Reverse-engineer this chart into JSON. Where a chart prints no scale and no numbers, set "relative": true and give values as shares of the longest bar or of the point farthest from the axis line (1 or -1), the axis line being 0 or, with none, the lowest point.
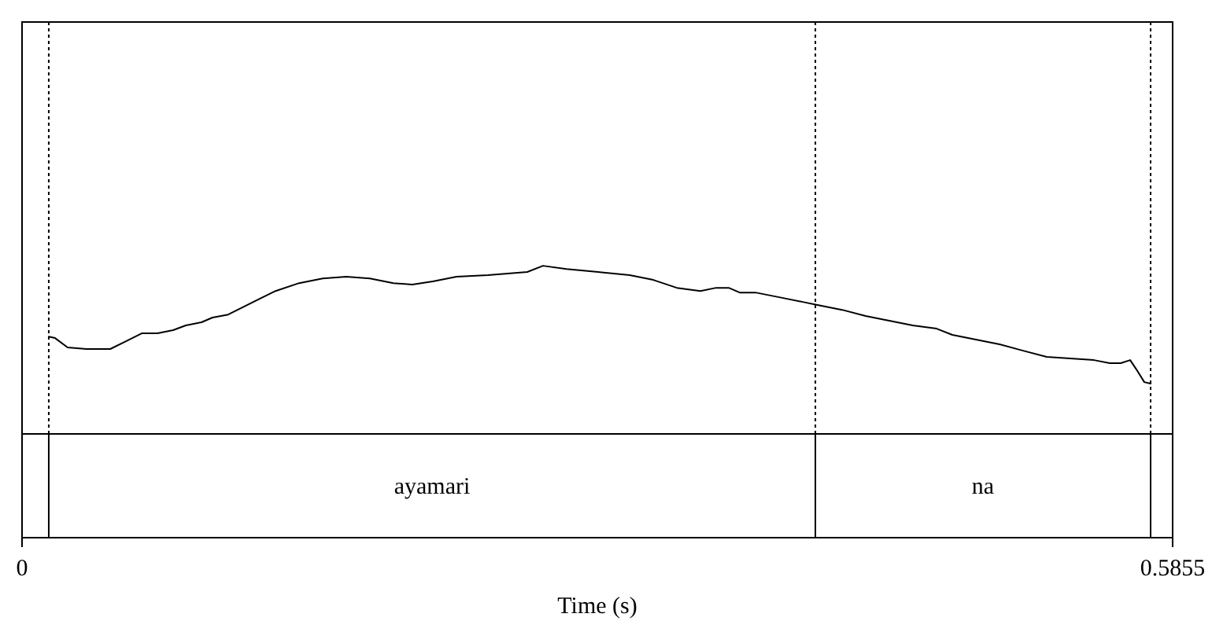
{
  "chart_data": {
    "type": "line",
    "relative": true,
    "xlabel": "Time (s)",
    "xlim": [
      0,
      0.5855
    ],
    "xticks": [
      0,
      0.5855
    ],
    "tick_labels": "x",
    "line_style": "solid",
    "marker": "none",
    "series": [
      {
        "color": "#000000",
        "x": [
          0.0136,
          0.0168,
          0.0232,
          0.0328,
          0.0449,
          0.0529,
          0.0609,
          0.0689,
          0.0769,
          0.0833,
          0.0913,
          0.0969,
          0.1049,
          0.1129,
          0.1209,
          0.129,
          0.141,
          0.153,
          0.165,
          0.177,
          0.189,
          0.1986,
          0.209,
          0.2211,
          0.2371,
          0.2571,
          0.2651,
          0.2771,
          0.2932,
          0.3092,
          0.3212,
          0.3332,
          0.3452,
          0.3532,
          0.3596,
          0.3652,
          0.3732,
          0.3853,
          0.3973,
          0.4053,
          0.4173,
          0.4293,
          0.4413,
          0.4533,
          0.4654,
          0.4734,
          0.4854,
          0.4974,
          0.5094,
          0.5214,
          0.5334,
          0.5455,
          0.5535,
          0.5591,
          0.5639,
          0.5671,
          0.5711,
          0.5743
        ],
        "values": [
          0.579,
          0.57,
          0.514,
          0.505,
          0.505,
          0.551,
          0.598,
          0.598,
          0.617,
          0.645,
          0.664,
          0.692,
          0.71,
          0.757,
          0.804,
          0.85,
          0.897,
          0.925,
          0.935,
          0.925,
          0.897,
          0.888,
          0.907,
          0.935,
          0.944,
          0.963,
          1,
          0.981,
          0.963,
          0.944,
          0.916,
          0.869,
          0.85,
          0.869,
          0.869,
          0.841,
          0.841,
          0.813,
          0.785,
          0.766,
          0.738,
          0.701,
          0.673,
          0.645,
          0.626,
          0.589,
          0.561,
          0.533,
          0.495,
          0.458,
          0.449,
          0.439,
          0.421,
          0.421,
          0.439,
          0.383,
          0.308,
          0.299
        ]
      }
    ],
    "ref_lines": [
      {
        "axis": "x",
        "value": 0.0136,
        "line_style": "dotted"
      },
      {
        "axis": "x",
        "value": 0.4037,
        "line_style": "dotted"
      },
      {
        "axis": "x",
        "value": 0.5743,
        "line_style": "dotted"
      }
    ],
    "annotations": [
      "ayamari",
      "na"
    ]
  }
}
